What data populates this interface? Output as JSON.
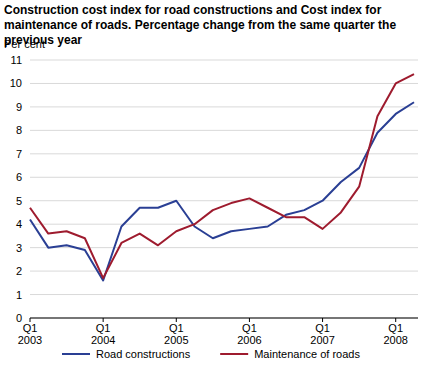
{
  "chart_data": {
    "type": "line",
    "title": "Construction cost index for road constructions and Cost index for maintenance of roads. Percentage change from the same quarter the previous year",
    "y_label": "Per cent",
    "categories": [
      "Q1 2003",
      null,
      null,
      null,
      "Q1 2004",
      null,
      null,
      null,
      "Q1 2005",
      null,
      null,
      null,
      "Q1 2006",
      null,
      null,
      null,
      "Q1 2007",
      null,
      null,
      null,
      "Q1 2008",
      null
    ],
    "series": [
      {
        "name": "Road constructions",
        "color": "#2a3f94",
        "values": [
          4.2,
          3.0,
          3.1,
          2.9,
          1.6,
          3.9,
          4.7,
          4.7,
          5.0,
          3.9,
          3.4,
          3.7,
          3.8,
          3.9,
          4.4,
          4.6,
          5.0,
          5.8,
          6.4,
          7.9,
          8.7,
          9.2
        ]
      },
      {
        "name": "Maintenance of roads",
        "color": "#9e1b2e",
        "values": [
          4.7,
          3.6,
          3.7,
          3.4,
          1.7,
          3.2,
          3.6,
          3.1,
          3.7,
          4.0,
          4.6,
          4.9,
          5.1,
          4.7,
          4.3,
          4.3,
          3.8,
          4.5,
          5.6,
          8.6,
          10.0,
          10.4
        ]
      }
    ],
    "ylim": [
      0,
      11
    ],
    "yticks": [
      0,
      1,
      2,
      3,
      4,
      5,
      6,
      7,
      8,
      9,
      10,
      11
    ],
    "grid": true,
    "legend": "bottom"
  }
}
